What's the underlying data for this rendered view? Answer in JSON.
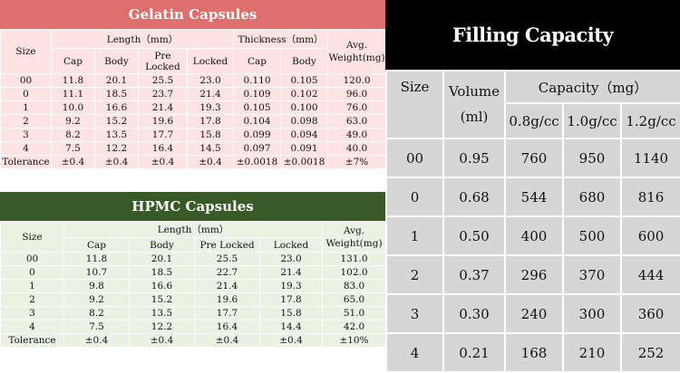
{
  "gelatin": {
    "title": "Gelatin Capsules",
    "headers": {
      "size": "Size",
      "length": "Length（mm）",
      "thickness": "Thickness（mm）",
      "avg_weight": "Avg. Weight(mg)",
      "cap": "Cap",
      "body": "Body",
      "pre_locked": "Pre Locked",
      "locked": "Locked",
      "cap2": "Cap",
      "body2": "Body"
    },
    "rows": [
      [
        "00",
        "11.8",
        "20.1",
        "25.5",
        "23.0",
        "0.110",
        "0.105",
        "120.0"
      ],
      [
        "0",
        "11.1",
        "18.5",
        "23.7",
        "21.4",
        "0.109",
        "0.102",
        "96.0"
      ],
      [
        "1",
        "10.0",
        "16.6",
        "21.4",
        "19.3",
        "0.105",
        "0.100",
        "76.0"
      ],
      [
        "2",
        "9.2",
        "15.2",
        "19.6",
        "17.8",
        "0.104",
        "0.098",
        "63.0"
      ],
      [
        "3",
        "8.2",
        "13.5",
        "17.7",
        "15.8",
        "0.099",
        "0.094",
        "49.0"
      ],
      [
        "4",
        "7.5",
        "12.2",
        "16.4",
        "14.5",
        "0.097",
        "0.091",
        "40.0"
      ],
      [
        "Tolerance",
        "±0.4",
        "±0.4",
        "±0.4",
        "±0.4",
        "±0.0018",
        "±0.0018",
        "±7%"
      ]
    ]
  },
  "hpmc": {
    "title": "HPMC Capsules",
    "headers": {
      "size": "Size",
      "length": "Length（mm）",
      "avg_weight": "Avg. Weight(mg)",
      "cap": "Cap",
      "body": "Body",
      "pre_locked": "Pre Locked",
      "locked": "Locked"
    },
    "rows": [
      [
        "00",
        "11.8",
        "20.1",
        "25.5",
        "23.0",
        "131.0"
      ],
      [
        "0",
        "10.7",
        "18.5",
        "22.7",
        "21.4",
        "102.0"
      ],
      [
        "1",
        "9.8",
        "16.6",
        "21.4",
        "19.3",
        "83.0"
      ],
      [
        "2",
        "9.2",
        "15.2",
        "19.6",
        "17.8",
        "65.0"
      ],
      [
        "3",
        "8.2",
        "13.5",
        "17.7",
        "15.8",
        "51.0"
      ],
      [
        "4",
        "7.5",
        "12.2",
        "16.4",
        "14.4",
        "42.0"
      ],
      [
        "Tolerance",
        "±0.4",
        "±0.4",
        "±0.4",
        "±0.4",
        "±10%"
      ]
    ]
  },
  "filling": {
    "title": "Filling Capacity",
    "headers": {
      "size": "Size",
      "volume": "Volume",
      "volume_unit": "(ml)",
      "capacity": "Capacity（mg）",
      "d1": "0.8g/cc",
      "d2": "1.0g/cc",
      "d3": "1.2g/cc"
    },
    "rows": [
      [
        "00",
        "0.95",
        "760",
        "950",
        "1140"
      ],
      [
        "0",
        "0.68",
        "544",
        "680",
        "816"
      ],
      [
        "1",
        "0.50",
        "400",
        "500",
        "600"
      ],
      [
        "2",
        "0.37",
        "296",
        "370",
        "444"
      ],
      [
        "3",
        "0.30",
        "240",
        "300",
        "360"
      ],
      [
        "4",
        "0.21",
        "168",
        "210",
        "252"
      ]
    ]
  },
  "colors": {
    "gelatin_banner": "#dd6f6d",
    "gelatin_cell": "#fde4e2",
    "hpmc_banner": "#385a27",
    "hpmc_cell": "#eaf3e3",
    "filling_banner": "#000000",
    "filling_cell": "#d6d6d7"
  }
}
